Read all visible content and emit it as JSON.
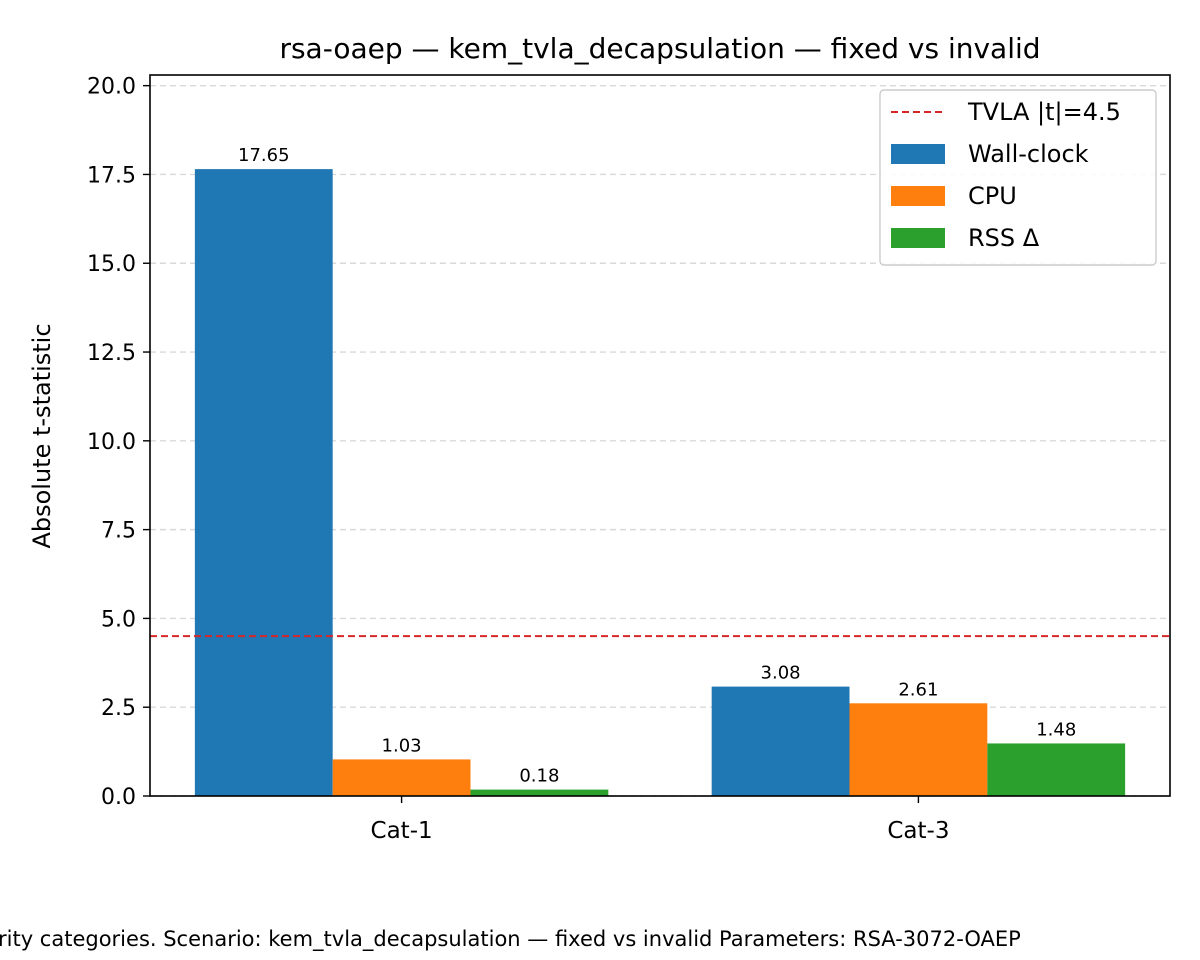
{
  "chart_data": {
    "type": "bar",
    "title": "rsa-oaep — kem_tvla_decapsulation — fixed vs invalid",
    "xlabel": "",
    "ylabel": "Absolute t-statistic",
    "categories": [
      "Cat-1",
      "Cat-3"
    ],
    "series": [
      {
        "name": "Wall-clock",
        "color": "#1f77b4",
        "values": [
          17.65,
          3.08
        ]
      },
      {
        "name": "CPU",
        "color": "#ff7f0e",
        "values": [
          1.03,
          2.61
        ]
      },
      {
        "name": "RSS Δ",
        "color": "#2ca02c",
        "values": [
          0.18,
          1.48
        ]
      }
    ],
    "value_labels": [
      [
        "17.65",
        "3.08"
      ],
      [
        "1.03",
        "2.61"
      ],
      [
        "0.18",
        "1.48"
      ]
    ],
    "threshold": {
      "label": "TVLA |t|=4.5",
      "value": 4.5,
      "color": "#d62728",
      "style": "dashed"
    },
    "ylim": [
      0,
      20.3
    ],
    "yticks": [
      0,
      2.5,
      5,
      7.5,
      10,
      12.5,
      15,
      17.5,
      20
    ],
    "ytick_labels": [
      "0.0",
      "2.5",
      "5.0",
      "7.5",
      "10.0",
      "12.5",
      "15.0",
      "17.5",
      "20.0"
    ],
    "grid": "y-dashed",
    "legend_position": "top-right",
    "caption": "rity categories. Scenario: kem_tvla_decapsulation — fixed vs invalid Parameters: RSA-3072-OAEP"
  }
}
